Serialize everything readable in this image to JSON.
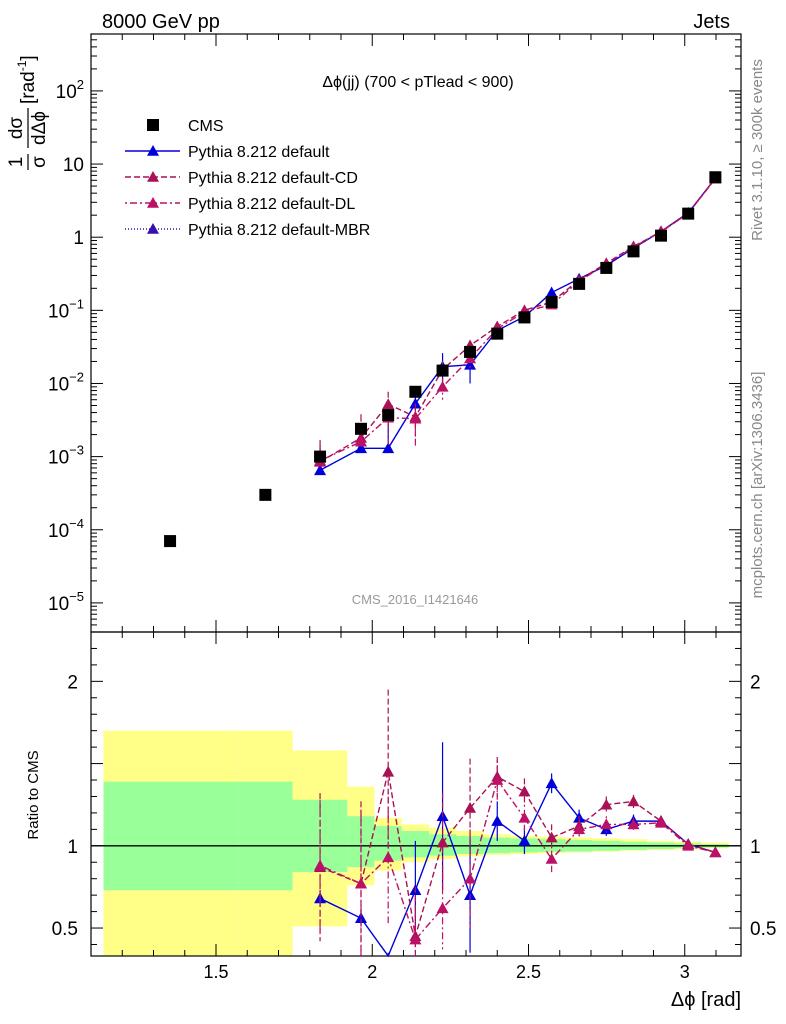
{
  "header": {
    "left": "8000 GeV pp",
    "right": "Jets"
  },
  "side": {
    "rivet": "Rivet 3.1.10, ≥ 300k events",
    "mcplots": "mcplots.cern.ch [arXiv:1306.3436]"
  },
  "watermark": "CMS_2016_I1421646",
  "chart_data": {
    "type": "line",
    "title": "Δϕ(jj) (700 < pTlead <  900)",
    "xlabel": "Δϕ [rad]",
    "ylabel": "1/σ dσ/dΔϕ [rad⁻¹]",
    "ylabel_parts": {
      "frac_num": "1",
      "frac_den": "σ",
      "frac2_num": "dσ",
      "frac2_den": "dΔϕ",
      "unit": "[rad",
      "unit_exp": "-1",
      "unit_close": "]"
    },
    "ratio_ylabel": "Ratio to CMS",
    "xlim": [
      1.1,
      3.18
    ],
    "ylim_log": [
      4e-06,
      600
    ],
    "ratio_ylim": [
      0.33,
      2.3
    ],
    "x_ticks": [
      1.5,
      2,
      2.5,
      3
    ],
    "x_tick_labels": [
      "1.5",
      "2",
      "2.5",
      "3"
    ],
    "y_ticks": [
      {
        "base": "10",
        "exp": "2",
        "value": 100
      },
      {
        "base": "10",
        "exp": "",
        "value": 10
      },
      {
        "base": "1",
        "exp": "",
        "value": 1
      },
      {
        "base": "10",
        "exp": "−1",
        "value": 0.1
      },
      {
        "base": "10",
        "exp": "−2",
        "value": 0.01
      },
      {
        "base": "10",
        "exp": "−3",
        "value": 0.001
      },
      {
        "base": "10",
        "exp": "−4",
        "value": 0.0001
      },
      {
        "base": "10",
        "exp": "−5",
        "value": 1e-05
      }
    ],
    "ratio_ticks": [
      {
        "label": "2",
        "value": 2
      },
      {
        "label": "1",
        "value": 1
      },
      {
        "label": "0.5",
        "value": 0.5
      }
    ],
    "data": {
      "name": "CMS",
      "x": [
        1.353,
        1.658,
        1.833,
        1.964,
        2.051,
        2.138,
        2.225,
        2.313,
        2.4,
        2.487,
        2.574,
        2.662,
        2.749,
        2.836,
        2.924,
        3.011,
        3.098
      ],
      "y": [
        7e-05,
        0.0003,
        0.001,
        0.0024,
        0.0037,
        0.0077,
        0.015,
        0.027,
        0.048,
        0.08,
        0.13,
        0.23,
        0.38,
        0.64,
        1.05,
        2.1,
        6.6
      ],
      "color": "#000000"
    },
    "bands": {
      "edges": [
        1.14,
        1.571,
        1.745,
        1.92,
        2.007,
        2.094,
        2.182,
        2.269,
        2.356,
        2.443,
        2.531,
        2.618,
        2.705,
        2.793,
        2.88,
        2.967,
        3.054,
        3.141
      ],
      "stat_lo": [
        0.73,
        0.73,
        0.84,
        0.87,
        0.91,
        0.93,
        0.94,
        0.95,
        0.955,
        0.96,
        0.963,
        0.965,
        0.97,
        0.975,
        0.98,
        0.985,
        0.99
      ],
      "stat_hi": [
        1.39,
        1.39,
        1.28,
        1.18,
        1.12,
        1.09,
        1.07,
        1.06,
        1.05,
        1.045,
        1.04,
        1.035,
        1.03,
        1.025,
        1.02,
        1.015,
        1.01
      ],
      "tot_lo": [
        0.33,
        0.33,
        0.51,
        0.76,
        0.85,
        0.9,
        0.92,
        0.935,
        0.945,
        0.95,
        0.955,
        0.96,
        0.965,
        0.97,
        0.975,
        0.98,
        0.985
      ],
      "tot_hi": [
        1.7,
        1.7,
        1.58,
        1.36,
        1.17,
        1.13,
        1.11,
        1.09,
        1.07,
        1.06,
        1.055,
        1.05,
        1.045,
        1.04,
        1.03,
        1.025,
        1.02
      ],
      "stat_color": "#99ff99",
      "tot_color": "#ffff88"
    },
    "series": [
      {
        "name": "Pythia 8.212 default",
        "color": "#0000dd",
        "dash": "",
        "x": [
          1.833,
          1.964,
          2.051,
          2.138,
          2.225,
          2.313,
          2.4,
          2.487,
          2.574,
          2.662,
          2.749,
          2.836,
          2.924,
          3.011,
          3.098
        ],
        "y": [
          0.00065,
          0.0013,
          0.0013,
          0.0053,
          0.017,
          0.018,
          0.053,
          0.082,
          0.175,
          0.27,
          0.41,
          0.71,
          1.2,
          2.15,
          6.4
        ],
        "err_lo": [
          1e-06,
          1e-06,
          1e-06,
          0.001,
          0.009,
          0.008,
          0.005,
          0.005,
          0.01,
          0.01,
          0.01,
          0.02,
          0.03,
          0.04,
          0.06
        ],
        "err_hi": [
          0.0007,
          0.0015,
          0.0015,
          0.0025,
          0.009,
          0.008,
          0.005,
          0.005,
          0.01,
          0.01,
          0.01,
          0.02,
          0.03,
          0.04,
          0.06
        ],
        "ratio": [
          0.68,
          0.56,
          0.3,
          0.73,
          1.18,
          0.7,
          1.15,
          1.03,
          1.38,
          1.17,
          1.1,
          1.15,
          1.15,
          1.01,
          0.96
        ],
        "ratio_err": [
          0.05,
          0.05,
          0.05,
          0.3,
          0.45,
          0.35,
          0.12,
          0.08,
          0.06,
          0.05,
          0.04,
          0.04,
          0.03,
          0.02,
          0.02
        ]
      },
      {
        "name": "Pythia 8.212 default-CD",
        "color": "#aa1155",
        "dash": "6,3",
        "x": [
          1.833,
          1.964,
          2.051,
          2.138,
          2.225,
          2.313,
          2.4,
          2.487,
          2.574,
          2.662,
          2.749,
          2.836,
          2.924,
          3.011,
          3.098
        ],
        "y": [
          0.00085,
          0.0018,
          0.0052,
          0.0035,
          0.0155,
          0.033,
          0.06,
          0.1,
          0.13,
          0.26,
          0.44,
          0.75,
          1.18,
          2.12,
          6.3
        ],
        "err_lo": [
          1e-06,
          1e-06,
          0.0025,
          0.0018,
          0.005,
          0.006,
          0.006,
          0.006,
          0.008,
          0.01,
          0.015,
          0.02,
          0.03,
          0.04,
          0.06
        ],
        "err_hi": [
          0.0008,
          0.002,
          0.0025,
          0.0018,
          0.005,
          0.006,
          0.006,
          0.006,
          0.008,
          0.01,
          0.015,
          0.02,
          0.03,
          0.04,
          0.06
        ],
        "ratio": [
          0.87,
          0.77,
          1.45,
          0.45,
          1.02,
          1.23,
          1.42,
          1.33,
          1.05,
          1.12,
          1.25,
          1.27,
          1.15,
          1.01,
          0.96
        ],
        "ratio_err": [
          0.45,
          0.5,
          0.5,
          0.3,
          0.3,
          0.3,
          0.12,
          0.08,
          0.08,
          0.06,
          0.05,
          0.04,
          0.03,
          0.02,
          0.02
        ]
      },
      {
        "name": "Pythia 8.212 default-DL",
        "color": "#bb1166",
        "dash": "2,3,7,3",
        "x": [
          1.833,
          1.964,
          2.051,
          2.138,
          2.225,
          2.313,
          2.4,
          2.487,
          2.574,
          2.662,
          2.749,
          2.836,
          2.924,
          3.011,
          3.098
        ],
        "y": [
          0.00088,
          0.0016,
          0.0034,
          0.0033,
          0.009,
          0.022,
          0.056,
          0.095,
          0.12,
          0.25,
          0.43,
          0.73,
          1.2,
          2.1,
          6.4
        ],
        "err_lo": [
          1e-06,
          1e-06,
          0.002,
          0.002,
          0.003,
          0.006,
          0.006,
          0.006,
          0.008,
          0.01,
          0.015,
          0.02,
          0.03,
          0.04,
          0.06
        ],
        "err_hi": [
          0.0008,
          0.0016,
          0.002,
          0.002,
          0.003,
          0.006,
          0.006,
          0.006,
          0.008,
          0.01,
          0.015,
          0.02,
          0.03,
          0.04,
          0.06
        ],
        "ratio": [
          0.88,
          0.77,
          0.93,
          0.43,
          0.62,
          0.8,
          1.4,
          1.17,
          0.92,
          1.1,
          1.13,
          1.13,
          1.14,
          1.0,
          0.96
        ],
        "ratio_err": [
          0.4,
          0.45,
          0.4,
          0.3,
          0.25,
          0.3,
          0.12,
          0.08,
          0.08,
          0.06,
          0.05,
          0.04,
          0.03,
          0.02,
          0.02
        ]
      },
      {
        "name": "Pythia 8.212 default-MBR",
        "color": "#3311aa",
        "dash": "1,2",
        "x": [],
        "y": [],
        "err_lo": [],
        "err_hi": [],
        "ratio": [],
        "ratio_err": []
      }
    ]
  }
}
